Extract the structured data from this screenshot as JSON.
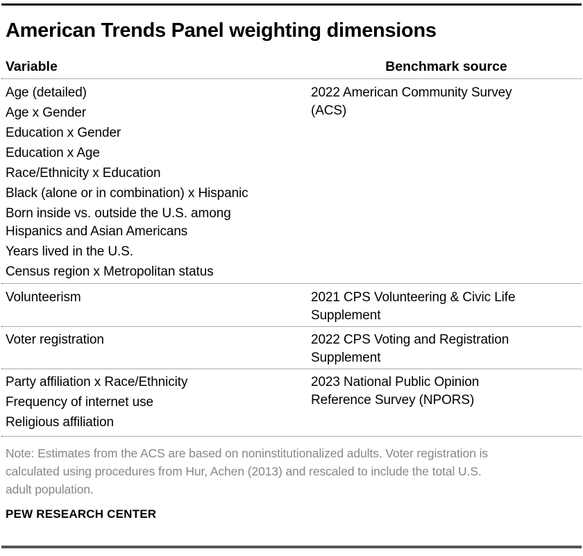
{
  "title": "American Trends Panel weighting dimensions",
  "table": {
    "columns": [
      "Variable",
      "Benchmark source"
    ],
    "sections": [
      {
        "variables": [
          "Age (detailed)",
          "Age x Gender",
          "Education x Gender",
          "Education x Age",
          "Race/Ethnicity x Education",
          "Black (alone or in combination) x Hispanic",
          "Born inside vs. outside the U.S. among\nHispanics and Asian Americans",
          "Years lived in the U.S.",
          "Census region x Metropolitan status"
        ],
        "benchmark": "2022 American Community Survey\n(ACS)"
      },
      {
        "variables": [
          "Volunteerism"
        ],
        "benchmark": "2021 CPS Volunteering & Civic Life\nSupplement"
      },
      {
        "variables": [
          "Voter registration"
        ],
        "benchmark": "2022 CPS Voting and Registration\nSupplement"
      },
      {
        "variables": [
          "Party affiliation x Race/Ethnicity",
          "Frequency of internet use",
          "Religious affiliation"
        ],
        "benchmark": "2023 National Public Opinion\nReference Survey (NPORS)"
      }
    ]
  },
  "note": "Note: Estimates from the ACS are based on noninstitutionalized adults. Voter registration is\ncalculated using procedures from Hur, Achen (2013) and rescaled to include the total U.S.\nadult population.",
  "brand": "PEW RESEARCH CENTER",
  "colors": {
    "text": "#000000",
    "note_gray": "#878787",
    "top_rule": "#000000",
    "bottom_rule": "#555555",
    "divider_dotted": "#555555"
  },
  "chart_data": {
    "type": "table",
    "title": "American Trends Panel weighting dimensions",
    "columns": [
      "Variable",
      "Benchmark source"
    ],
    "rows": [
      {
        "variables": [
          "Age (detailed)",
          "Age x Gender",
          "Education x Gender",
          "Education x Age",
          "Race/Ethnicity x Education",
          "Black (alone or in combination) x Hispanic",
          "Born inside vs. outside the U.S. among Hispanics and Asian Americans",
          "Years lived in the U.S.",
          "Census region x Metropolitan status"
        ],
        "benchmark": "2022 American Community Survey (ACS)"
      },
      {
        "variables": [
          "Volunteerism"
        ],
        "benchmark": "2021 CPS Volunteering & Civic Life Supplement"
      },
      {
        "variables": [
          "Voter registration"
        ],
        "benchmark": "2022 CPS Voting and Registration Supplement"
      },
      {
        "variables": [
          "Party affiliation x Race/Ethnicity",
          "Frequency of internet use",
          "Religious affiliation"
        ],
        "benchmark": "2023 National Public Opinion Reference Survey (NPORS)"
      }
    ],
    "note": "Note: Estimates from the ACS are based on noninstitutionalized adults. Voter registration is calculated using procedures from Hur, Achen (2013) and rescaled to include the total U.S. adult population.",
    "source_label": "PEW RESEARCH CENTER"
  }
}
